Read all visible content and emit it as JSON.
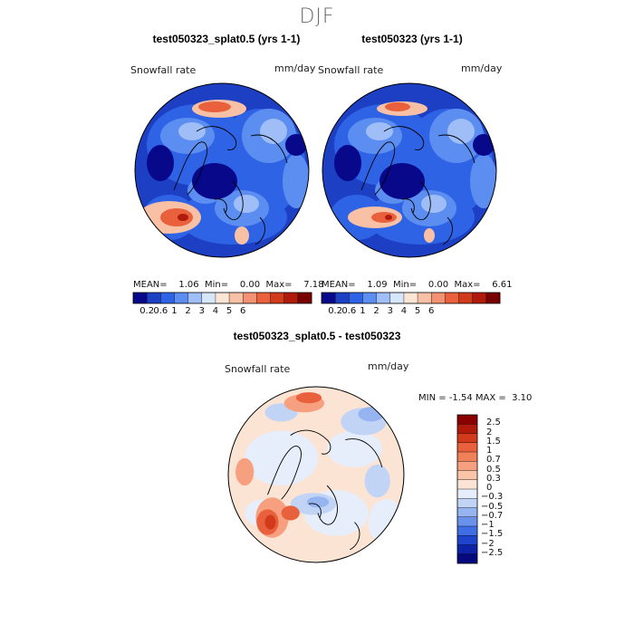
{
  "figure": {
    "title": "DJF"
  },
  "panels": [
    {
      "title": "test050323_splat0.5 (yrs 1-1)",
      "variable": "Snowfall rate",
      "units": "mm/day",
      "stats": {
        "mean_label": "MEAN=",
        "mean": "1.06",
        "min_label": "Min=",
        "min": "0.00",
        "max_label": "Max=",
        "max": "7.18"
      }
    },
    {
      "title": "test050323 (yrs 1-1)",
      "variable": "Snowfall rate",
      "units": "mm/day",
      "stats": {
        "mean_label": "MEAN=",
        "mean": "1.09",
        "min_label": "Min=",
        "min": "0.00",
        "max_label": "Max=",
        "max": "6.61"
      }
    },
    {
      "title": "test050323_splat0.5 - test050323",
      "variable": "Snowfall rate",
      "units": "mm/day",
      "stats": {
        "min_label": "MIN =",
        "min": "-1.54",
        "max_label": "MAX =",
        "max": "3.10"
      }
    }
  ],
  "chart_data": [
    {
      "type": "heatmap",
      "projection": "north-polar-stereographic",
      "field": "Snowfall rate (mm/day)",
      "colorbar": {
        "orientation": "horizontal",
        "levels": [
          0.2,
          0.6,
          1,
          2,
          3,
          4,
          5,
          6
        ],
        "tick_labels": [
          "0.2",
          "0.6",
          "1",
          "2",
          "3",
          "4",
          "5",
          "6"
        ],
        "colors": [
          "#08088a",
          "#1c3fc4",
          "#2f63e6",
          "#5b8ef0",
          "#9fbef8",
          "#d6e6fb",
          "#fbe6d6",
          "#f8c0a4",
          "#f29272",
          "#e8603c",
          "#d23a1c",
          "#b01a0a",
          "#7a0000"
        ]
      },
      "summary": {
        "mean": 1.06,
        "min": 0.0,
        "max": 7.18
      }
    },
    {
      "type": "heatmap",
      "projection": "north-polar-stereographic",
      "field": "Snowfall rate (mm/day)",
      "colorbar": {
        "orientation": "horizontal",
        "levels": [
          0.2,
          0.6,
          1,
          2,
          3,
          4,
          5,
          6
        ],
        "tick_labels": [
          "0.2",
          "0.6",
          "1",
          "2",
          "3",
          "4",
          "5",
          "6"
        ],
        "colors": [
          "#08088a",
          "#1c3fc4",
          "#2f63e6",
          "#5b8ef0",
          "#9fbef8",
          "#d6e6fb",
          "#fbe6d6",
          "#f8c0a4",
          "#f29272",
          "#e8603c",
          "#d23a1c",
          "#b01a0a",
          "#7a0000"
        ]
      },
      "summary": {
        "mean": 1.09,
        "min": 0.0,
        "max": 6.61
      }
    },
    {
      "type": "heatmap",
      "projection": "north-polar-stereographic",
      "field": "Snowfall rate difference (mm/day)",
      "colorbar": {
        "orientation": "vertical",
        "levels": [
          2.5,
          2,
          1.5,
          1,
          0.7,
          0.5,
          0.3,
          0,
          -0.3,
          -0.5,
          -0.7,
          -1,
          -1.5,
          -2,
          -2.5
        ],
        "tick_labels": [
          "2.5",
          "2",
          "1.5",
          "1",
          "0.7",
          "0.5",
          "0.3",
          "0",
          "−0.3",
          "−0.5",
          "−0.7",
          "−1",
          "−1.5",
          "−2",
          "−2.5"
        ],
        "colors": [
          "#8a0000",
          "#b01a0a",
          "#d23a1c",
          "#e8603c",
          "#f08058",
          "#f6a080",
          "#f9c4a8",
          "#fce4d4",
          "#e6eefb",
          "#c2d4f6",
          "#96b4f0",
          "#6a92ea",
          "#3f6ee4",
          "#1f44cc",
          "#0e22a8",
          "#06087e"
        ]
      },
      "summary": {
        "min": -1.54,
        "max": 3.1
      }
    }
  ]
}
